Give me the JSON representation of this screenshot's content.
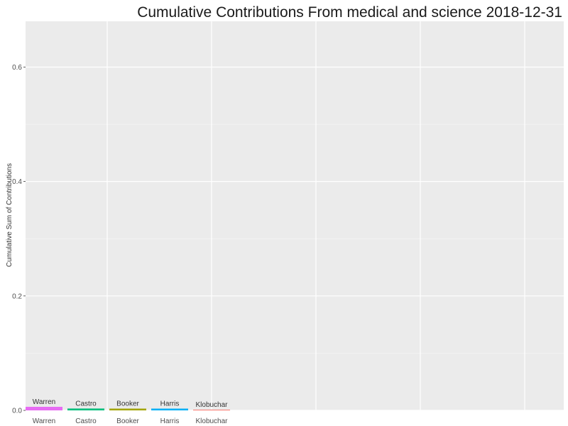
{
  "chart_data": {
    "type": "bar",
    "title": "Cumulative Contributions From  medical and science  2018-12-31",
    "xlabel": "",
    "ylabel": "Cumulative Sum of Contributions",
    "ylim": [
      0,
      0.68
    ],
    "yticks": [
      0.0,
      0.2,
      0.4,
      0.6
    ],
    "ytick_labels": [
      "0.0",
      "0.2",
      "0.4",
      "0.6"
    ],
    "grid": true,
    "categories": [
      "Warren",
      "Castro",
      "Booker",
      "Harris",
      "Klobuchar"
    ],
    "values": [
      0.005,
      0.002,
      0.001,
      0.001,
      0.0
    ],
    "colors": [
      "#E76BF3",
      "#00BF7D",
      "#A3A500",
      "#00B0F6",
      "#F8766D"
    ]
  }
}
